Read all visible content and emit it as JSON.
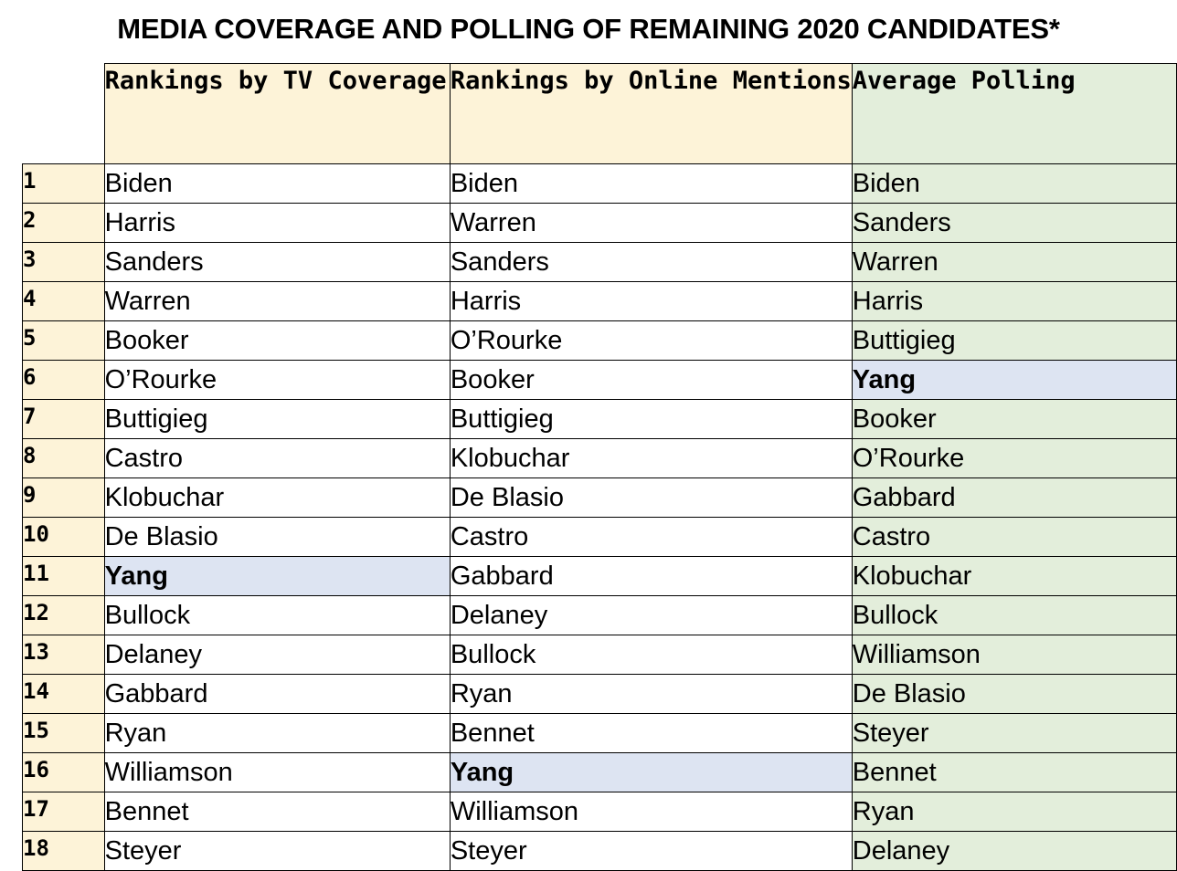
{
  "title": "MEDIA COVERAGE AND POLLING OF REMAINING 2020 CANDIDATES*",
  "headers": {
    "tv": "Rankings by TV Coverage",
    "online": "Rankings by Online Mentions",
    "poll": "Average Polling"
  },
  "highlight": {
    "name": "Yang",
    "color": "#dde4f2"
  },
  "colors": {
    "rank_and_media_header_bg": "#fdf3d8",
    "polling_column_bg": "#e3eedb"
  },
  "rows": [
    {
      "rank": "1",
      "tv": "Biden",
      "online": "Biden",
      "poll": "Biden"
    },
    {
      "rank": "2",
      "tv": "Harris",
      "online": "Warren",
      "poll": "Sanders"
    },
    {
      "rank": "3",
      "tv": "Sanders",
      "online": "Sanders",
      "poll": "Warren"
    },
    {
      "rank": "4",
      "tv": "Warren",
      "online": "Harris",
      "poll": "Harris"
    },
    {
      "rank": "5",
      "tv": "Booker",
      "online": "O’Rourke",
      "poll": "Buttigieg"
    },
    {
      "rank": "6",
      "tv": "O’Rourke",
      "online": "Booker",
      "poll": "Yang"
    },
    {
      "rank": "7",
      "tv": "Buttigieg",
      "online": "Buttigieg",
      "poll": "Booker"
    },
    {
      "rank": "8",
      "tv": "Castro",
      "online": "Klobuchar",
      "poll": "O’Rourke"
    },
    {
      "rank": "9",
      "tv": "Klobuchar",
      "online": "De Blasio",
      "poll": "Gabbard"
    },
    {
      "rank": "10",
      "tv": "De Blasio",
      "online": "Castro",
      "poll": "Castro"
    },
    {
      "rank": "11",
      "tv": "Yang",
      "online": "Gabbard",
      "poll": "Klobuchar"
    },
    {
      "rank": "12",
      "tv": "Bullock",
      "online": "Delaney",
      "poll": "Bullock"
    },
    {
      "rank": "13",
      "tv": "Delaney",
      "online": "Bullock",
      "poll": "Williamson"
    },
    {
      "rank": "14",
      "tv": "Gabbard",
      "online": "Ryan",
      "poll": "De Blasio"
    },
    {
      "rank": "15",
      "tv": "Ryan",
      "online": "Bennet",
      "poll": "Steyer"
    },
    {
      "rank": "16",
      "tv": "Williamson",
      "online": "Yang",
      "poll": "Bennet"
    },
    {
      "rank": "17",
      "tv": "Bennet",
      "online": "Williamson",
      "poll": "Ryan"
    },
    {
      "rank": "18",
      "tv": "Steyer",
      "online": "Steyer",
      "poll": "Delaney"
    }
  ]
}
